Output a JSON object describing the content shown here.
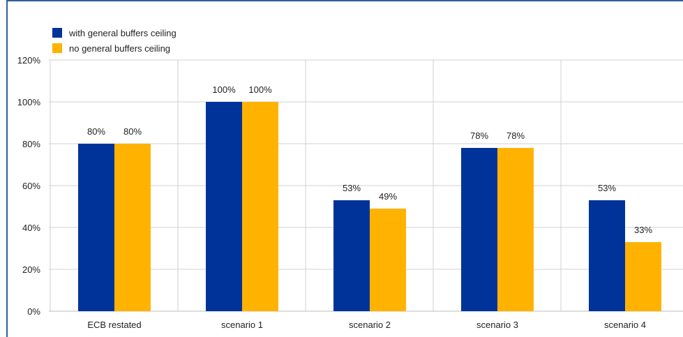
{
  "colors": {
    "series_1": "#003399",
    "series_2": "#FFB300",
    "grid": "#d0d0d0",
    "frame": "#2f5f9a"
  },
  "chart_data": {
    "type": "bar",
    "categories": [
      "ECB restated",
      "scenario 1",
      "scenario 2",
      "scenario 3",
      "scenario 4"
    ],
    "series": [
      {
        "name": "with general buffers ceiling",
        "values": [
          80,
          100,
          53,
          78,
          53
        ],
        "labels": [
          "80%",
          "100%",
          "53%",
          "78%",
          "53%"
        ]
      },
      {
        "name": "no general buffers ceiling",
        "values": [
          80,
          100,
          49,
          78,
          33
        ],
        "labels": [
          "80%",
          "100%",
          "49%",
          "78%",
          "33%"
        ]
      }
    ],
    "y_ticks": [
      "0%",
      "20%",
      "40%",
      "60%",
      "80%",
      "100%",
      "120%"
    ],
    "ylim": [
      0,
      120
    ],
    "grid": true,
    "legend_position": "top-left"
  }
}
